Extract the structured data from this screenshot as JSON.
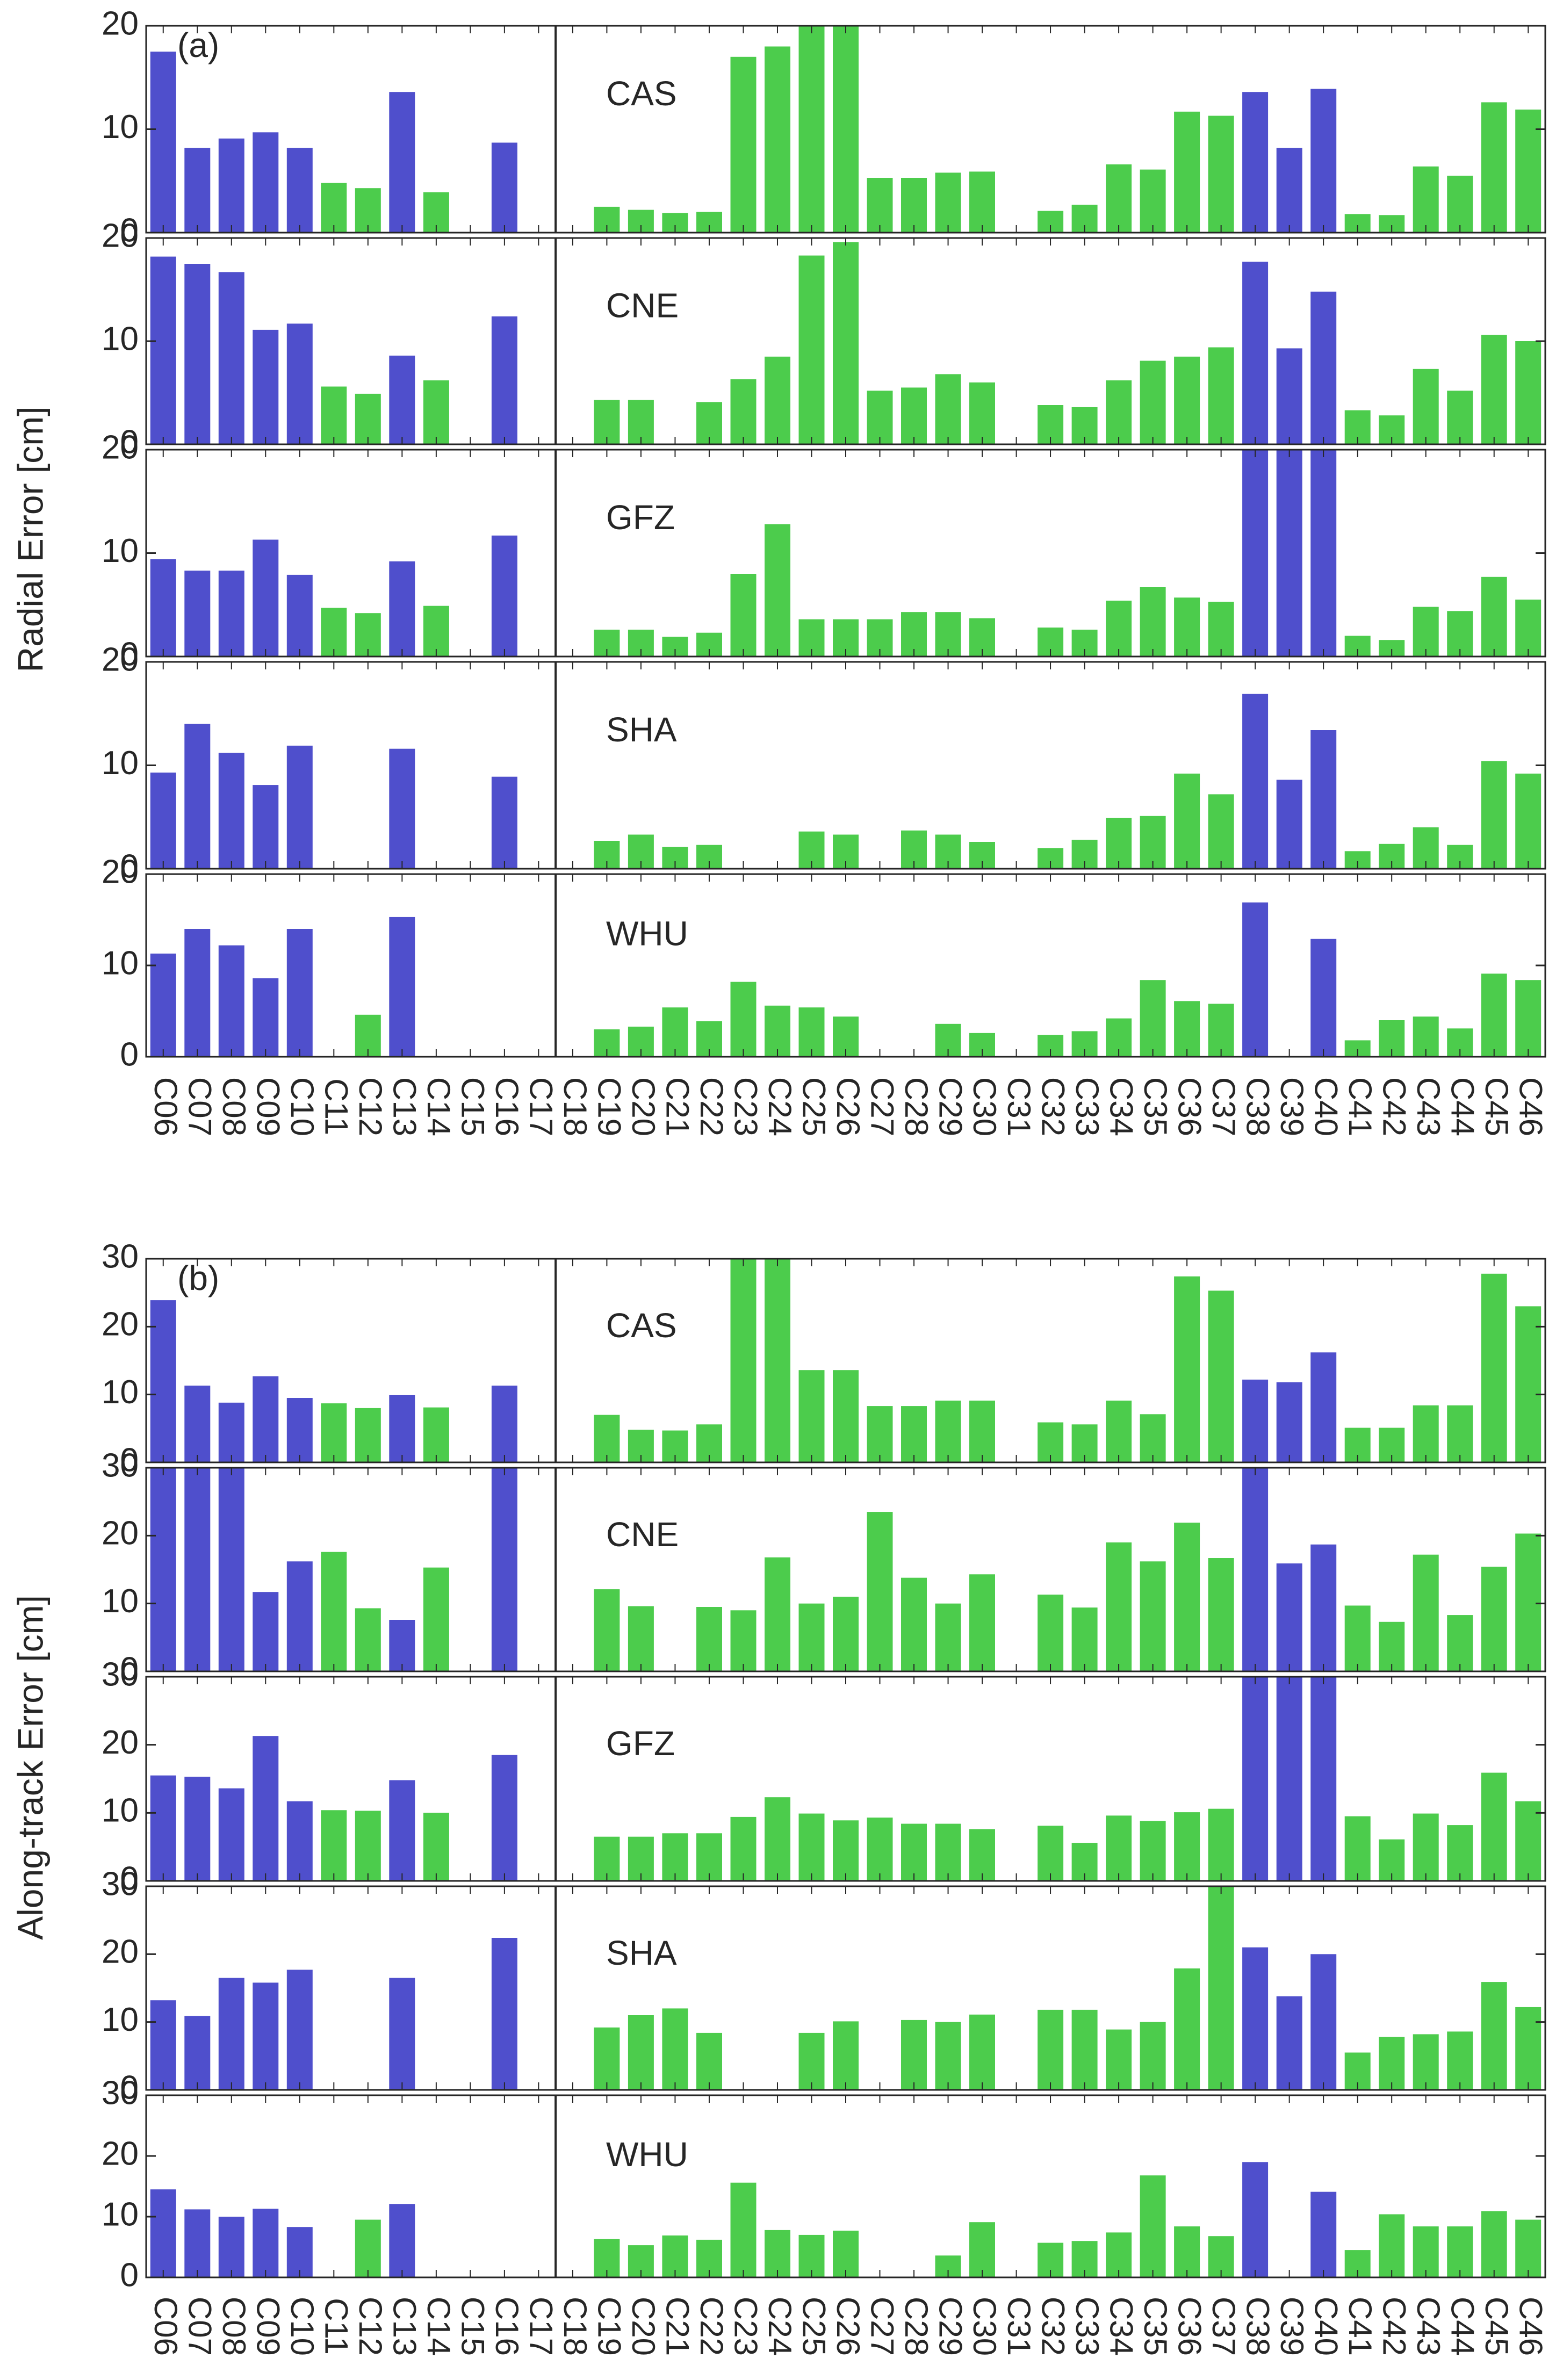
{
  "colors": {
    "blue": "#4f4fcc",
    "green": "#4ccc4c",
    "axis": "#262626"
  },
  "chart_data": [
    {
      "type": "bar",
      "title": "",
      "panel_label": "(a)",
      "xlabel": "",
      "ylabel": "Radial Error [cm]",
      "ylim": [
        0,
        20
      ],
      "yticks": [
        "0",
        "10",
        "20"
      ],
      "categories": [
        "C06",
        "C07",
        "C08",
        "C09",
        "C10",
        "C11",
        "C12",
        "C13",
        "C14",
        "C15",
        "C16",
        "C17",
        "C18",
        "C19",
        "C20",
        "C21",
        "C22",
        "C23",
        "C24",
        "C25",
        "C26",
        "C27",
        "C28",
        "C29",
        "C30",
        "C31",
        "C32",
        "C33",
        "C34",
        "C35",
        "C36",
        "C37",
        "C38",
        "C39",
        "C40",
        "C41",
        "C42",
        "C43",
        "C44",
        "C45",
        "C46"
      ],
      "bar_colors": [
        "blue",
        "blue",
        "blue",
        "blue",
        "blue",
        "green",
        "green",
        "blue",
        "green",
        "green",
        "blue",
        "blue",
        "green",
        "green",
        "green",
        "green",
        "green",
        "green",
        "green",
        "green",
        "green",
        "green",
        "green",
        "green",
        "green",
        "green",
        "green",
        "green",
        "green",
        "green",
        "green",
        "green",
        "blue",
        "blue",
        "blue",
        "green",
        "green",
        "green",
        "green",
        "green",
        "green"
      ],
      "separator_after": "C17",
      "series": [
        {
          "name": "CAS",
          "values": [
            17.5,
            8.2,
            9.1,
            9.7,
            8.2,
            4.8,
            4.3,
            13.6,
            3.9,
            null,
            8.7,
            null,
            null,
            2.5,
            2.2,
            1.9,
            2.0,
            17.0,
            18.0,
            20.0,
            20.0,
            5.3,
            5.3,
            5.8,
            5.9,
            null,
            2.1,
            2.7,
            6.6,
            6.1,
            11.7,
            11.3,
            13.6,
            8.2,
            13.9,
            1.8,
            1.7,
            6.4,
            5.5,
            12.6,
            11.9
          ]
        },
        {
          "name": "CNE",
          "values": [
            18.2,
            17.5,
            16.7,
            11.1,
            11.7,
            5.6,
            4.9,
            8.6,
            6.2,
            null,
            12.4,
            null,
            null,
            4.3,
            4.3,
            null,
            4.1,
            6.3,
            8.5,
            18.3,
            19.6,
            5.2,
            5.5,
            6.8,
            6.0,
            null,
            3.8,
            3.6,
            6.2,
            8.1,
            8.5,
            9.4,
            17.7,
            9.3,
            14.8,
            3.3,
            2.8,
            7.3,
            5.2,
            10.6,
            10.0
          ]
        },
        {
          "name": "GFZ",
          "values": [
            9.4,
            8.3,
            8.3,
            11.3,
            7.9,
            4.7,
            4.2,
            9.2,
            4.9,
            null,
            11.7,
            null,
            null,
            2.6,
            2.6,
            1.9,
            2.3,
            8.0,
            12.8,
            3.6,
            3.6,
            3.6,
            4.3,
            4.3,
            3.7,
            null,
            2.8,
            2.6,
            5.4,
            6.7,
            5.7,
            5.3,
            20.0,
            20.0,
            20.0,
            2.0,
            1.6,
            4.8,
            4.4,
            7.7,
            5.5
          ]
        },
        {
          "name": "SHA",
          "values": [
            9.3,
            14.0,
            11.2,
            8.1,
            11.9,
            null,
            null,
            11.6,
            null,
            null,
            8.9,
            null,
            null,
            2.7,
            3.3,
            2.1,
            2.3,
            null,
            null,
            3.6,
            3.3,
            null,
            3.7,
            3.3,
            2.6,
            null,
            2.0,
            2.8,
            4.9,
            5.1,
            9.2,
            7.2,
            16.9,
            8.6,
            13.4,
            1.7,
            2.4,
            4.0,
            2.3,
            10.4,
            9.2
          ]
        },
        {
          "name": "WHU",
          "values": [
            11.3,
            14.0,
            12.2,
            8.6,
            14.0,
            null,
            4.6,
            15.3,
            null,
            null,
            null,
            null,
            null,
            3.0,
            3.3,
            5.4,
            3.9,
            8.2,
            5.6,
            5.4,
            4.4,
            null,
            null,
            3.6,
            2.6,
            null,
            2.4,
            2.8,
            4.2,
            8.4,
            6.1,
            5.8,
            16.9,
            null,
            12.9,
            1.8,
            4.0,
            4.4,
            3.1,
            9.1,
            8.4
          ]
        }
      ]
    },
    {
      "type": "bar",
      "title": "",
      "panel_label": "(b)",
      "xlabel": "",
      "ylabel": "Along-track Error [cm]",
      "ylim": [
        0,
        30
      ],
      "yticks": [
        "0",
        "10",
        "20",
        "30"
      ],
      "categories": [
        "C06",
        "C07",
        "C08",
        "C09",
        "C10",
        "C11",
        "C12",
        "C13",
        "C14",
        "C15",
        "C16",
        "C17",
        "C18",
        "C19",
        "C20",
        "C21",
        "C22",
        "C23",
        "C24",
        "C25",
        "C26",
        "C27",
        "C28",
        "C29",
        "C30",
        "C31",
        "C32",
        "C33",
        "C34",
        "C35",
        "C36",
        "C37",
        "C38",
        "C39",
        "C40",
        "C41",
        "C42",
        "C43",
        "C44",
        "C45",
        "C46"
      ],
      "bar_colors": [
        "blue",
        "blue",
        "blue",
        "blue",
        "blue",
        "green",
        "green",
        "blue",
        "green",
        "green",
        "blue",
        "blue",
        "green",
        "green",
        "green",
        "green",
        "green",
        "green",
        "green",
        "green",
        "green",
        "green",
        "green",
        "green",
        "green",
        "green",
        "green",
        "green",
        "green",
        "green",
        "green",
        "green",
        "blue",
        "blue",
        "blue",
        "green",
        "green",
        "green",
        "green",
        "green",
        "green"
      ],
      "separator_after": "C17",
      "series": [
        {
          "name": "CAS",
          "values": [
            23.9,
            11.3,
            8.8,
            12.7,
            9.5,
            8.7,
            8.0,
            9.9,
            8.1,
            null,
            11.3,
            null,
            null,
            7.0,
            4.8,
            4.7,
            5.6,
            30.0,
            30.0,
            13.6,
            13.6,
            8.3,
            8.3,
            9.1,
            9.1,
            null,
            5.9,
            5.6,
            9.1,
            7.1,
            27.4,
            25.3,
            12.2,
            11.8,
            16.2,
            5.1,
            5.1,
            8.4,
            8.4,
            27.8,
            23.0
          ]
        },
        {
          "name": "CNE",
          "values": [
            30.0,
            30.0,
            30.0,
            11.7,
            16.2,
            17.6,
            9.3,
            7.6,
            15.3,
            null,
            30.0,
            null,
            null,
            12.1,
            9.6,
            null,
            9.5,
            9.0,
            16.8,
            10.0,
            11.0,
            23.5,
            13.8,
            10.0,
            14.3,
            null,
            11.3,
            9.4,
            19.0,
            16.2,
            21.9,
            16.7,
            30.0,
            15.9,
            18.7,
            9.7,
            7.3,
            17.2,
            8.3,
            15.4,
            20.3
          ]
        },
        {
          "name": "GFZ",
          "values": [
            15.5,
            15.3,
            13.6,
            21.3,
            11.7,
            10.4,
            10.3,
            14.8,
            10.0,
            null,
            18.5,
            null,
            null,
            6.5,
            6.5,
            7.0,
            7.0,
            9.4,
            12.3,
            9.9,
            8.9,
            9.3,
            8.4,
            8.4,
            7.6,
            null,
            8.1,
            5.6,
            9.6,
            8.8,
            10.1,
            10.6,
            30.0,
            30.0,
            30.0,
            9.5,
            6.1,
            9.9,
            8.2,
            15.9,
            11.7
          ]
        },
        {
          "name": "SHA",
          "values": [
            13.2,
            10.9,
            16.5,
            15.8,
            17.7,
            null,
            null,
            16.5,
            null,
            null,
            22.4,
            null,
            null,
            9.2,
            11.0,
            12.0,
            8.4,
            null,
            null,
            8.4,
            10.1,
            null,
            10.3,
            10.0,
            11.1,
            null,
            11.8,
            11.8,
            8.9,
            10.0,
            17.9,
            30.0,
            21.0,
            13.8,
            20.0,
            5.5,
            7.8,
            8.2,
            8.6,
            15.9,
            12.2
          ]
        },
        {
          "name": "WHU",
          "values": [
            14.5,
            11.2,
            10.0,
            11.3,
            8.3,
            null,
            9.5,
            12.1,
            null,
            null,
            null,
            null,
            null,
            6.3,
            5.3,
            6.9,
            6.2,
            15.6,
            7.8,
            7.0,
            7.7,
            null,
            null,
            3.6,
            9.1,
            null,
            5.7,
            6.0,
            7.4,
            16.8,
            8.4,
            6.8,
            19.0,
            null,
            14.1,
            4.5,
            10.4,
            8.4,
            8.4,
            10.9,
            9.5
          ]
        }
      ]
    }
  ]
}
